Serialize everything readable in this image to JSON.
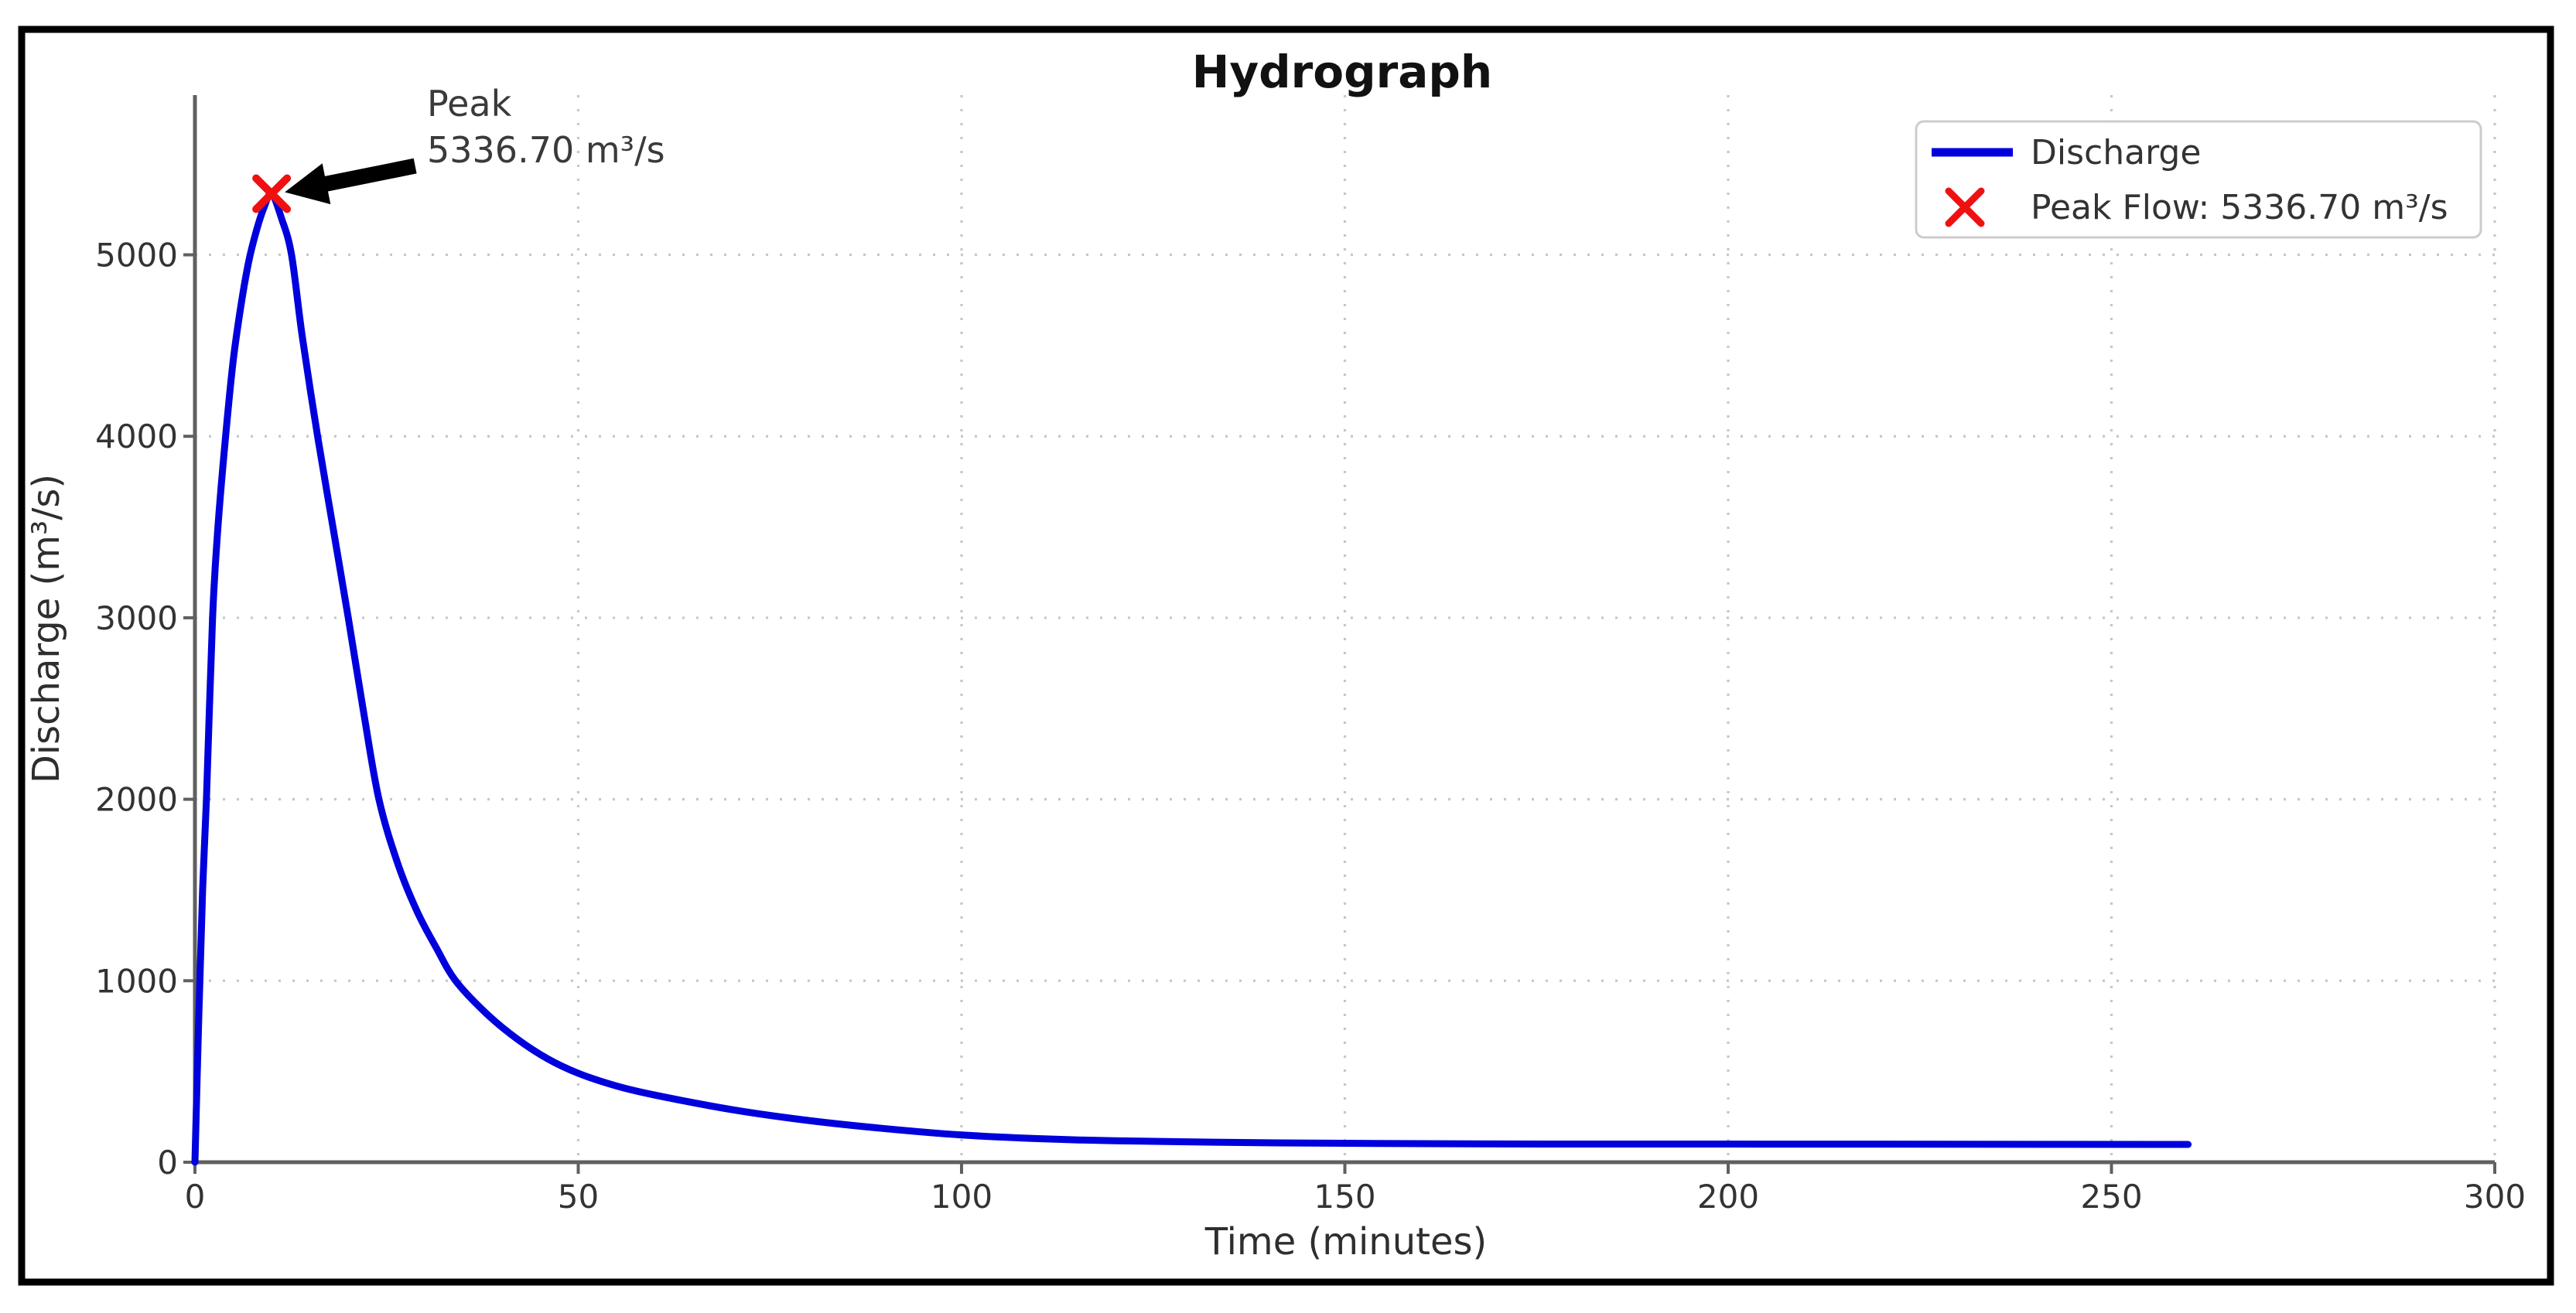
{
  "figure": {
    "background": "#ffffff",
    "border_color": "#000000"
  },
  "chart_data": {
    "type": "line",
    "title": "Hydrograph",
    "xlabel": "Time (minutes)",
    "ylabel": "Discharge (m³/s)",
    "xlim": [
      0,
      300
    ],
    "ylim": [
      0,
      5880
    ],
    "x_tick_values": [
      0,
      50,
      100,
      150,
      200,
      250,
      300
    ],
    "x_tick_labels": [
      "0",
      "50",
      "100",
      "150",
      "200",
      "250",
      "300"
    ],
    "y_tick_values": [
      0,
      1000,
      2000,
      3000,
      4000,
      5000
    ],
    "y_tick_labels": [
      "0",
      "1000",
      "2000",
      "3000",
      "4000",
      "5000"
    ],
    "grid": {
      "visible": true,
      "style": "dotted",
      "color": "#c6c6c6"
    },
    "axis_color": "#606060",
    "legend": {
      "position": "upper right",
      "entries": [
        {
          "label": "Discharge",
          "type": "line",
          "color": "#0000dd"
        },
        {
          "label": "Peak Flow: 5336.70 m³/s",
          "type": "x-marker",
          "color": "#f01010"
        }
      ]
    },
    "series": [
      {
        "name": "Discharge",
        "color": "#0000dd",
        "x": [
          0,
          0.5,
          1,
          1.5,
          2.3,
          3,
          4,
          5,
          6,
          7,
          8,
          9,
          10,
          11.3,
          12.6,
          14,
          16,
          18,
          20,
          22,
          24,
          26.5,
          29,
          31.5,
          34,
          38,
          42,
          46,
          50,
          55,
          60,
          70,
          80,
          90,
          100,
          110,
          120,
          140,
          160,
          180,
          200,
          230,
          260
        ],
        "y": [
          0,
          800,
          1500,
          2000,
          3000,
          3500,
          4000,
          4420,
          4720,
          4960,
          5130,
          5260,
          5336.7,
          5200,
          5000,
          4550,
          4000,
          3500,
          3000,
          2480,
          2000,
          1640,
          1380,
          1180,
          1000,
          820,
          680,
          570,
          490,
          420,
          370,
          290,
          230,
          185,
          150,
          130,
          118,
          107,
          102,
          100,
          100,
          99,
          98
        ]
      }
    ],
    "peak_marker": {
      "t": 10,
      "q": 5336.7,
      "marker": "x",
      "color": "#f01010"
    },
    "annotation": {
      "line1": "Peak",
      "line2": "5336.70 m³/s",
      "arrow_color": "#000000"
    }
  }
}
